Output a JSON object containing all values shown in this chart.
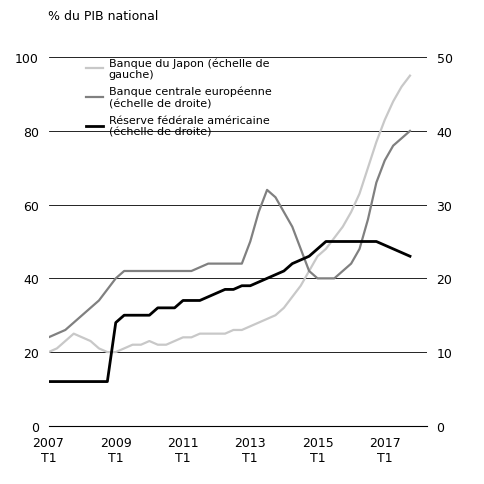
{
  "title_left": "% du PIB national",
  "ylim_left": [
    0,
    100
  ],
  "ylim_right": [
    0,
    50
  ],
  "yticks_left": [
    0,
    20,
    40,
    60,
    80,
    100
  ],
  "yticks_right": [
    0,
    10,
    20,
    30,
    40,
    50
  ],
  "xtick_years": [
    2007,
    2009,
    2011,
    2013,
    2015,
    2017
  ],
  "xlim": [
    2007.0,
    2018.25
  ],
  "legend": [
    {
      "label": "Banque du Japon (échelle de\ngauche)",
      "color": "#c8c8c8",
      "lw": 1.6
    },
    {
      "label": "Banque centrale européenne\n(échelle de droite)",
      "color": "#808080",
      "lw": 1.6
    },
    {
      "label": "Réserve fédérale américaine\n(échelle de droite)",
      "color": "#000000",
      "lw": 2.0
    }
  ],
  "japan": {
    "color": "#c8c8c8",
    "lw": 1.6,
    "x": [
      2007.0,
      2007.25,
      2007.5,
      2007.75,
      2008.0,
      2008.25,
      2008.5,
      2008.75,
      2009.0,
      2009.25,
      2009.5,
      2009.75,
      2010.0,
      2010.25,
      2010.5,
      2010.75,
      2011.0,
      2011.25,
      2011.5,
      2011.75,
      2012.0,
      2012.25,
      2012.5,
      2012.75,
      2013.0,
      2013.25,
      2013.5,
      2013.75,
      2014.0,
      2014.25,
      2014.5,
      2014.75,
      2015.0,
      2015.25,
      2015.5,
      2015.75,
      2016.0,
      2016.25,
      2016.5,
      2016.75,
      2017.0,
      2017.25,
      2017.5,
      2017.75
    ],
    "y": [
      20,
      21,
      23,
      25,
      24,
      23,
      21,
      20,
      20,
      21,
      22,
      22,
      23,
      22,
      22,
      23,
      24,
      24,
      25,
      25,
      25,
      25,
      26,
      26,
      27,
      28,
      29,
      30,
      32,
      35,
      38,
      42,
      46,
      48,
      51,
      54,
      58,
      63,
      70,
      77,
      83,
      88,
      92,
      95
    ]
  },
  "ecb": {
    "color": "#808080",
    "lw": 1.6,
    "x": [
      2007.0,
      2007.25,
      2007.5,
      2007.75,
      2008.0,
      2008.25,
      2008.5,
      2008.75,
      2009.0,
      2009.25,
      2009.5,
      2009.75,
      2010.0,
      2010.25,
      2010.5,
      2010.75,
      2011.0,
      2011.25,
      2011.5,
      2011.75,
      2012.0,
      2012.25,
      2012.5,
      2012.75,
      2013.0,
      2013.25,
      2013.5,
      2013.75,
      2014.0,
      2014.25,
      2014.5,
      2014.75,
      2015.0,
      2015.25,
      2015.5,
      2015.75,
      2016.0,
      2016.25,
      2016.5,
      2016.75,
      2017.0,
      2017.25,
      2017.5,
      2017.75
    ],
    "y": [
      12,
      12.5,
      13,
      14,
      15,
      16,
      17,
      18.5,
      20,
      21,
      21,
      21,
      21,
      21,
      21,
      21,
      21,
      21,
      21.5,
      22,
      22,
      22,
      22,
      22,
      25,
      29,
      32,
      31,
      29,
      27,
      24,
      21,
      20,
      20,
      20,
      21,
      22,
      24,
      28,
      33,
      36,
      38,
      39,
      40
    ]
  },
  "fed": {
    "color": "#000000",
    "lw": 2.0,
    "x": [
      2007.0,
      2007.25,
      2007.5,
      2007.75,
      2008.0,
      2008.25,
      2008.5,
      2008.75,
      2009.0,
      2009.25,
      2009.5,
      2009.75,
      2010.0,
      2010.25,
      2010.5,
      2010.75,
      2011.0,
      2011.25,
      2011.5,
      2011.75,
      2012.0,
      2012.25,
      2012.5,
      2012.75,
      2013.0,
      2013.25,
      2013.5,
      2013.75,
      2014.0,
      2014.25,
      2014.5,
      2014.75,
      2015.0,
      2015.25,
      2015.5,
      2015.75,
      2016.0,
      2016.25,
      2016.5,
      2016.75,
      2017.0,
      2017.25,
      2017.5,
      2017.75
    ],
    "y": [
      6,
      6,
      6,
      6,
      6,
      6,
      6,
      6,
      14,
      15,
      15,
      15,
      15,
      16,
      16,
      16,
      17,
      17,
      17,
      17.5,
      18,
      18.5,
      18.5,
      19,
      19,
      19.5,
      20,
      20.5,
      21,
      22,
      22.5,
      23,
      24,
      25,
      25,
      25,
      25,
      25,
      25,
      25,
      24.5,
      24,
      23.5,
      23
    ]
  }
}
